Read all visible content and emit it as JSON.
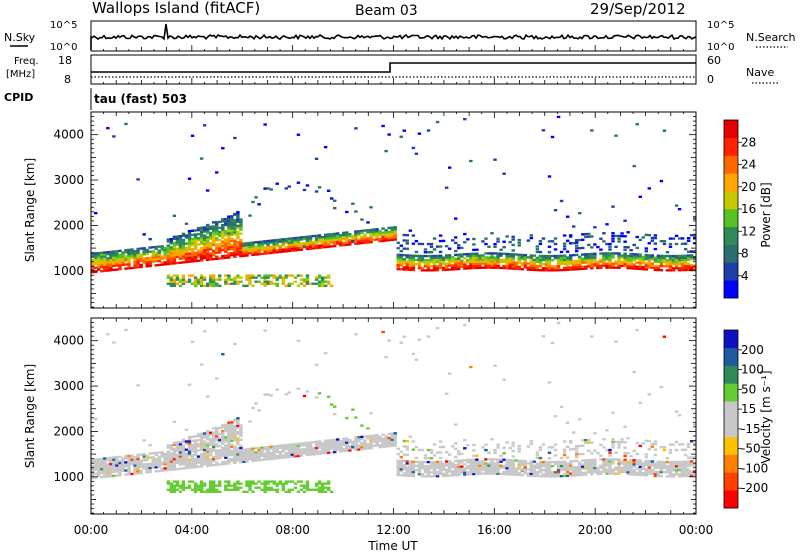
{
  "header": {
    "station": "Wallops Island (fitACF)",
    "beam": "Beam 03",
    "date": "29/Sep/2012"
  },
  "panels": {
    "noise": {
      "left_label": "N.Sky",
      "right_label": "N.Search",
      "left_ticks": [
        "10^5",
        "10^0"
      ],
      "right_ticks": [
        "10^5",
        "10^0"
      ]
    },
    "freq": {
      "left_label_1": "Freq.",
      "left_label_2": "[MHz]",
      "right_label": "Nave",
      "left_ticks": [
        "18",
        "8"
      ],
      "right_ticks": [
        "60",
        "0"
      ]
    },
    "cpid": {
      "label": "CPID",
      "value": "tau (fast) 503"
    }
  },
  "colors": {
    "power": [
      "#0000ff",
      "#1f3fa8",
      "#2a6e6e",
      "#2e8b57",
      "#55c322",
      "#c8c800",
      "#ffa500",
      "#ff6600",
      "#ff2200",
      "#e60000"
    ],
    "velocity": [
      "#ff0000",
      "#ff4000",
      "#ff8000",
      "#ffc000",
      "#c8c8c8",
      "#c8c8c8",
      "#66cc33",
      "#2e8b57",
      "#1e5aa0",
      "#1010c0"
    ]
  },
  "chart_data": [
    {
      "type": "heatmap",
      "name": "Power",
      "ylabel": "Slant Range [km]",
      "yticks": [
        "1000",
        "2000",
        "3000",
        "4000"
      ],
      "ylim": [
        180,
        4500
      ],
      "colorbar_label": "Power [dB]",
      "colorbar_ticks": [
        "4",
        "8",
        "12",
        "16",
        "20",
        "24",
        "28"
      ],
      "colorbar_range": [
        0,
        30
      ]
    },
    {
      "type": "heatmap",
      "name": "Velocity",
      "ylabel": "Slant Range [km]",
      "yticks": [
        "1000",
        "2000",
        "3000",
        "4000"
      ],
      "ylim": [
        180,
        4500
      ],
      "colorbar_label": "Velocity [m s⁻¹]",
      "colorbar_ticks": [
        "-200",
        "-100",
        "-50",
        "-15",
        "15",
        "50",
        "100",
        "200"
      ],
      "colorbar_range": [
        -250,
        250
      ]
    }
  ],
  "xaxis": {
    "label": "Time UT",
    "ticks": [
      "00:00",
      "04:00",
      "08:00",
      "12:00",
      "16:00",
      "20:00",
      "00:00"
    ],
    "range_hours": [
      0,
      24
    ]
  }
}
